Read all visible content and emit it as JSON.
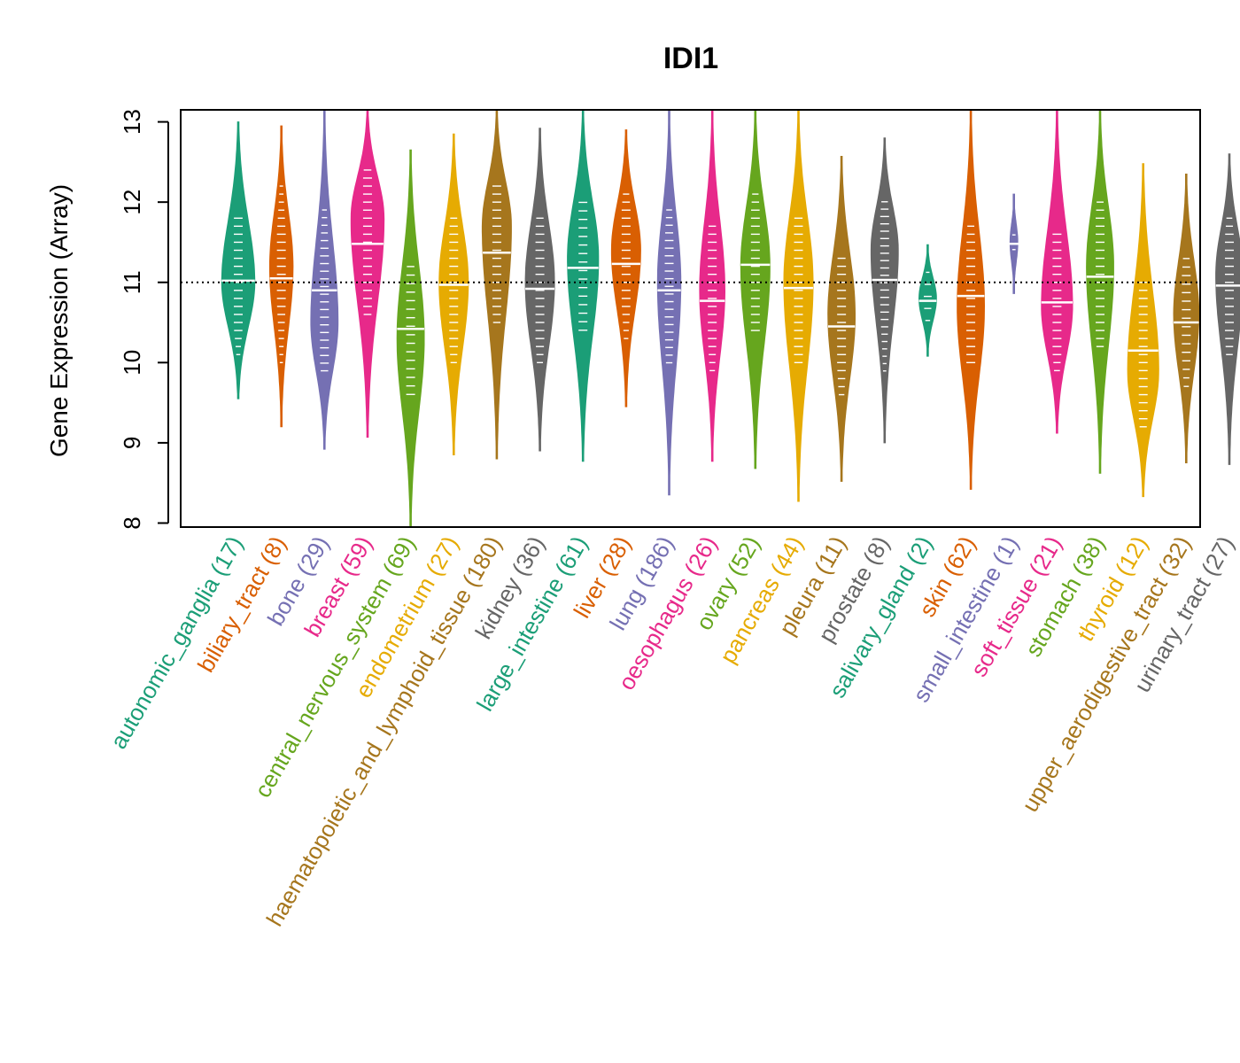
{
  "chart_data": {
    "type": "violin",
    "title": "IDI1",
    "ylabel": "Gene Expression (Array)",
    "xlabel": "",
    "ylim": [
      7.95,
      13.15
    ],
    "yticks": [
      8,
      9,
      10,
      11,
      12,
      13
    ],
    "reference_line": 11.0,
    "categories": [
      {
        "label": "autonomic_ganglia (17)",
        "color": "#1B9E77",
        "min": 9.55,
        "max": 13.0,
        "median": 11.02,
        "q1": 10.4,
        "q3": 11.5,
        "peak": 11.0,
        "width": 0.85
      },
      {
        "label": "biliary_tract (8)",
        "color": "#D95F02",
        "min": 9.2,
        "max": 12.95,
        "median": 11.05,
        "q1": 10.2,
        "q3": 11.9,
        "peak": 11.2,
        "width": 0.6
      },
      {
        "label": "bone (29)",
        "color": "#7570B3",
        "min": 8.92,
        "max": 13.15,
        "median": 10.9,
        "q1": 10.2,
        "q3": 11.6,
        "peak": 10.5,
        "width": 0.7
      },
      {
        "label": "breast (59)",
        "color": "#E7298A",
        "min": 9.07,
        "max": 13.15,
        "median": 11.48,
        "q1": 10.9,
        "q3": 12.1,
        "peak": 11.8,
        "width": 0.85
      },
      {
        "label": "central_nervous_system (69)",
        "color": "#66A61E",
        "min": 7.95,
        "max": 12.65,
        "median": 10.42,
        "q1": 9.9,
        "q3": 10.9,
        "peak": 10.3,
        "width": 0.7
      },
      {
        "label": "endometrium (27)",
        "color": "#E6AB02",
        "min": 8.85,
        "max": 12.85,
        "median": 10.97,
        "q1": 10.3,
        "q3": 11.5,
        "peak": 11.0,
        "width": 0.75
      },
      {
        "label": "haematopoietic_and_lymphoid_tissue (180)",
        "color": "#A6761D",
        "min": 8.8,
        "max": 13.15,
        "median": 11.37,
        "q1": 10.8,
        "q3": 11.9,
        "peak": 11.7,
        "width": 0.75
      },
      {
        "label": "kidney (36)",
        "color": "#666666",
        "min": 8.9,
        "max": 12.92,
        "median": 10.92,
        "q1": 10.3,
        "q3": 11.5,
        "peak": 11.0,
        "width": 0.75
      },
      {
        "label": "large_intestine (61)",
        "color": "#1B9E77",
        "min": 8.77,
        "max": 13.15,
        "median": 11.18,
        "q1": 10.7,
        "q3": 11.7,
        "peak": 11.3,
        "width": 0.8
      },
      {
        "label": "liver (28)",
        "color": "#D95F02",
        "min": 9.45,
        "max": 12.9,
        "median": 11.23,
        "q1": 10.6,
        "q3": 11.8,
        "peak": 11.4,
        "width": 0.75
      },
      {
        "label": "lung (186)",
        "color": "#7570B3",
        "min": 8.35,
        "max": 13.15,
        "median": 10.9,
        "q1": 10.3,
        "q3": 11.6,
        "peak": 11.0,
        "width": 0.6
      },
      {
        "label": "oesophagus (26)",
        "color": "#E7298A",
        "min": 8.77,
        "max": 13.15,
        "median": 10.77,
        "q1": 10.2,
        "q3": 11.4,
        "peak": 10.9,
        "width": 0.65
      },
      {
        "label": "ovary (52)",
        "color": "#66A61E",
        "min": 8.68,
        "max": 13.15,
        "median": 11.22,
        "q1": 10.7,
        "q3": 11.8,
        "peak": 11.2,
        "width": 0.75
      },
      {
        "label": "pancreas (44)",
        "color": "#E6AB02",
        "min": 8.27,
        "max": 13.15,
        "median": 10.93,
        "q1": 10.3,
        "q3": 11.5,
        "peak": 11.0,
        "width": 0.75
      },
      {
        "label": "pleura (11)",
        "color": "#A6761D",
        "min": 8.52,
        "max": 12.57,
        "median": 10.45,
        "q1": 9.9,
        "q3": 11.0,
        "peak": 10.6,
        "width": 0.7
      },
      {
        "label": "prostate (8)",
        "color": "#666666",
        "min": 9.0,
        "max": 12.8,
        "median": 11.03,
        "q1": 10.2,
        "q3": 11.7,
        "peak": 11.4,
        "width": 0.7
      },
      {
        "label": "salivary_gland (2)",
        "color": "#1B9E77",
        "min": 10.08,
        "max": 11.47,
        "median": 10.77,
        "q1": 10.5,
        "q3": 11.0,
        "peak": 10.8,
        "width": 0.45
      },
      {
        "label": "skin (62)",
        "color": "#D95F02",
        "min": 8.42,
        "max": 13.15,
        "median": 10.83,
        "q1": 10.3,
        "q3": 11.4,
        "peak": 10.7,
        "width": 0.7
      },
      {
        "label": "small_intestine (1)",
        "color": "#7570B3",
        "min": 10.86,
        "max": 12.1,
        "median": 11.48,
        "q1": 11.3,
        "q3": 11.7,
        "peak": 11.5,
        "width": 0.2
      },
      {
        "label": "soft_tissue (21)",
        "color": "#E7298A",
        "min": 9.12,
        "max": 13.15,
        "median": 10.75,
        "q1": 10.2,
        "q3": 11.3,
        "peak": 10.7,
        "width": 0.8
      },
      {
        "label": "stomach (38)",
        "color": "#66A61E",
        "min": 8.62,
        "max": 13.15,
        "median": 11.07,
        "q1": 10.5,
        "q3": 11.7,
        "peak": 11.2,
        "width": 0.7
      },
      {
        "label": "thyroid (12)",
        "color": "#E6AB02",
        "min": 8.33,
        "max": 12.48,
        "median": 10.15,
        "q1": 9.5,
        "q3": 10.7,
        "peak": 9.9,
        "width": 0.8
      },
      {
        "label": "upper_aerodigestive_tract (32)",
        "color": "#A6761D",
        "min": 8.75,
        "max": 12.35,
        "median": 10.5,
        "q1": 10.0,
        "q3": 11.0,
        "peak": 10.6,
        "width": 0.65
      },
      {
        "label": "urinary_tract (27)",
        "color": "#666666",
        "min": 8.73,
        "max": 12.6,
        "median": 10.96,
        "q1": 10.4,
        "q3": 11.5,
        "peak": 11.1,
        "width": 0.7
      }
    ]
  }
}
